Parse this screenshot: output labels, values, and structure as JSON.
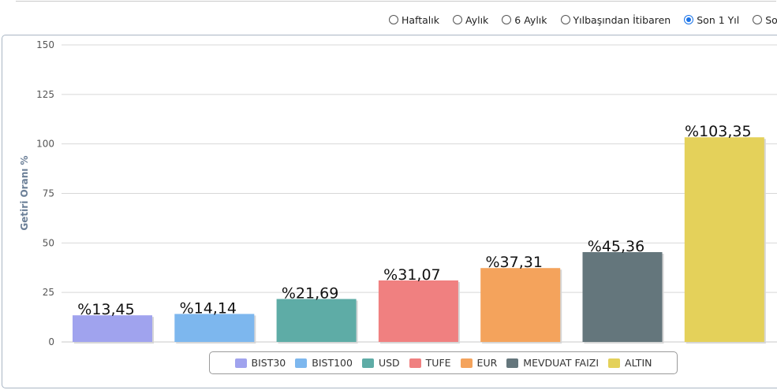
{
  "period_options": [
    {
      "label": "Haftalık",
      "checked": false
    },
    {
      "label": "Aylık",
      "checked": false
    },
    {
      "label": "6 Aylık",
      "checked": false
    },
    {
      "label": "Yılbaşından İtibaren",
      "checked": false
    },
    {
      "label": "Son 1 Yıl",
      "checked": true
    },
    {
      "label": "So",
      "checked": false
    }
  ],
  "chart_data": {
    "type": "bar",
    "ylabel": "Getiri Oranı %",
    "xlabel": "",
    "ylim": [
      0,
      150
    ],
    "yticks": [
      0,
      25,
      50,
      75,
      100,
      125,
      150
    ],
    "grid": true,
    "legend_position": "bottom",
    "categories": [
      "BIST30",
      "BIST100",
      "USD",
      "TUFE",
      "EUR",
      "MEVDUAT FAIZI",
      "ALTIN"
    ],
    "values": [
      13.45,
      14.14,
      21.69,
      31.07,
      37.31,
      45.36,
      103.35
    ],
    "data_labels": [
      "%13,45",
      "%14,14",
      "%21,69",
      "%31,07",
      "%37,31",
      "%45,36",
      "%103,35"
    ],
    "colors": [
      "#a0a3ee",
      "#7db7ee",
      "#5eaca6",
      "#f08080",
      "#f4a35c",
      "#64767c",
      "#e4d15a"
    ]
  }
}
